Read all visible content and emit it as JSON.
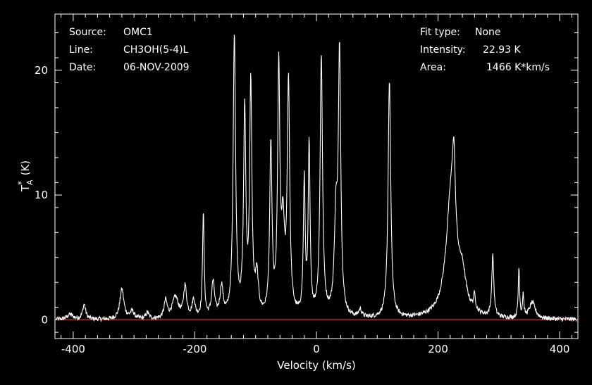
{
  "colors": {
    "background": "#000000",
    "foreground": "#ffffff",
    "baseline": "#e0302a"
  },
  "header_left": {
    "source_label": "Source:",
    "source_value": "OMC1",
    "line_label": "Line:",
    "line_value": "CH3OH(5-4)L",
    "date_label": "Date:",
    "date_value": "06-NOV-2009"
  },
  "header_right": {
    "fit_label": "Fit type:",
    "fit_value": "None",
    "intensity_label": "Intensity:",
    "intensity_value": "22.93 K",
    "area_label": "Area:",
    "area_value": "1466 K*km/s"
  },
  "chart_data": {
    "type": "line",
    "xlabel": "Velocity (km/s)",
    "ylabel_main": "T",
    "ylabel_super": "*",
    "ylabel_sub": "A",
    "ylabel_unit": "(K)",
    "xlim": [
      -430,
      430
    ],
    "ylim": [
      -1.5,
      24.5
    ],
    "x_ticks": [
      -400,
      -200,
      0,
      200,
      400
    ],
    "x_tick_labels": [
      "-400",
      "-200",
      "0",
      "200",
      "400"
    ],
    "y_ticks": [
      0,
      10,
      20
    ],
    "y_tick_labels": [
      "0",
      "10",
      "20"
    ],
    "baseline_value": 0,
    "series": [
      {
        "peaks": [
          {
            "v": -405,
            "h": 0.4,
            "w": 6
          },
          {
            "v": -382,
            "h": 1.2,
            "w": 3
          },
          {
            "v": -320,
            "h": 2.4,
            "w": 4
          },
          {
            "v": -303,
            "h": 0.6,
            "w": 4
          },
          {
            "v": -278,
            "h": 0.5,
            "w": 3
          },
          {
            "v": -248,
            "h": 1.4,
            "w": 3
          },
          {
            "v": -232,
            "h": 1.7,
            "w": 6
          },
          {
            "v": -216,
            "h": 2.5,
            "w": 3
          },
          {
            "v": -202,
            "h": 1.4,
            "w": 3
          },
          {
            "v": -186,
            "h": 8.4,
            "w": 1.6
          },
          {
            "v": -170,
            "h": 2.8,
            "w": 3
          },
          {
            "v": -156,
            "h": 2.4,
            "w": 3
          },
          {
            "v": -135,
            "h": 22.6,
            "w": 2.4
          },
          {
            "v": -118,
            "h": 16.2,
            "w": 2.2
          },
          {
            "v": -108,
            "h": 18.4,
            "w": 2.2
          },
          {
            "v": -98,
            "h": 3.0,
            "w": 3
          },
          {
            "v": -75,
            "h": 13.6,
            "w": 2.2
          },
          {
            "v": -62,
            "h": 19.4,
            "w": 2.2
          },
          {
            "v": -55,
            "h": 6.5,
            "w": 3
          },
          {
            "v": -46,
            "h": 18.6,
            "w": 2.4
          },
          {
            "v": -20,
            "h": 10.6,
            "w": 1.8
          },
          {
            "v": -12,
            "h": 13.6,
            "w": 1.8
          },
          {
            "v": 8,
            "h": 20.8,
            "w": 2.4
          },
          {
            "v": 32,
            "h": 7.5,
            "w": 3
          },
          {
            "v": 38,
            "h": 20.8,
            "w": 2.4
          },
          {
            "v": 72,
            "h": 0.6,
            "w": 3
          },
          {
            "v": 120,
            "h": 19.0,
            "w": 2.6
          },
          {
            "v": 222,
            "h": 10.2,
            "w": 10
          },
          {
            "v": 226,
            "h": 5.4,
            "w": 2.5
          },
          {
            "v": 240,
            "h": 2.4,
            "w": 7
          },
          {
            "v": 260,
            "h": 1.2,
            "w": 2
          },
          {
            "v": 290,
            "h": 4.9,
            "w": 2
          },
          {
            "v": 333,
            "h": 4.0,
            "w": 1.3
          },
          {
            "v": 340,
            "h": 1.8,
            "w": 1.3
          },
          {
            "v": 355,
            "h": 1.3,
            "w": 6
          }
        ]
      }
    ]
  }
}
